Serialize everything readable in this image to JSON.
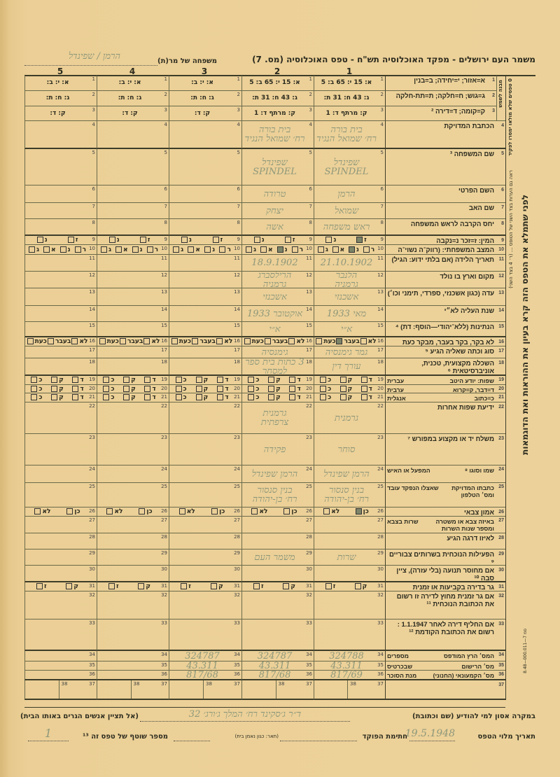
{
  "header": {
    "title": "משמר העם ירושלים - מפקד האוכלוסיה תש\"ח - טפס האוכלוסיה (מס. 7)",
    "family_label": "משפחה של מר(ת)",
    "family_value": "הרמן / שפינדל",
    "column_numbers": [
      "1",
      "2",
      "3",
      "4",
      "5"
    ]
  },
  "side": {
    "main_instruction": "לפני שתמלא את הטפס הזה קרא בעיון את ההוראות ואת הדוגמאות",
    "small_instruction": "ראה גם הערות בצד השני של הטופס ... (ר׳ 4 בצד השני)",
    "block_label": "מבנה לשמש",
    "forms_note": "0 טפסים שלא מולאו ימסרו לפקיד",
    "print_code": "סמ 7—000.011—8.48"
  },
  "rows": [
    {
      "num": "1",
      "label": "א=אזור; י=יחידה; ב=בנין"
    },
    {
      "num": "2",
      "label": "ג=גוש; ח=חלקה; ת=תת-חלקה"
    },
    {
      "num": "3",
      "label": "ק=קומה; ד=דירה ²"
    },
    {
      "num": "4",
      "label": "הכתבת המדויקת"
    },
    {
      "num": "5",
      "label": "שם המשפחה ³"
    },
    {
      "num": "6",
      "label": "השם הפרטי"
    },
    {
      "num": "7",
      "label": "שם האב"
    },
    {
      "num": "8",
      "label": "יחס הקרבה לראש המשפחה"
    },
    {
      "num": "9",
      "label": "המין: ז=זכר   נ=נקבה",
      "options": [
        "ז",
        "נ"
      ]
    },
    {
      "num": "10",
      "label": "המצב המשפחתי: (רווק־ה נשוי־ה אלמן־ה גרוש־ה)",
      "options": [
        "ר",
        "נ",
        "א",
        "ג"
      ]
    },
    {
      "num": "11",
      "label": "תאריך הלידה (אם בלתי ידוע: הגיל)"
    },
    {
      "num": "12",
      "label": "מקום וארץ בו נולד"
    },
    {
      "num": "13",
      "label": "עדה (כגון אשכנזי, ספרדי, תימני וכו׳)"
    },
    {
      "num": "14",
      "label": "שנת העליה לא״י"
    },
    {
      "num": "15",
      "label": "הנתינות (ללא־יהודי—הוסף: דת) ⁴"
    },
    {
      "num": "16",
      "label": "לא בקר, בקר בעבר, מבקר כעת",
      "options": [
        "לא",
        "בעבר",
        "כעת"
      ]
    },
    {
      "num": "17",
      "label": "סוג וכתה שאליה הגיע ⁵"
    },
    {
      "num": "18",
      "label": "השכלה מקצועית, טכנית, אוניברסיטאית ⁶"
    },
    {
      "num": "19",
      "label": "שפות: יודע היטב",
      "side": "עברית",
      "options": [
        "ד",
        "ק",
        "כ"
      ]
    },
    {
      "num": "20",
      "label": "ד=דבר, ק=קרוא",
      "side": "ערבית",
      "options": [
        "ד",
        "ק",
        "כ"
      ]
    },
    {
      "num": "21",
      "label": "כ=כתוב",
      "side": "אנגלית",
      "options": [
        "ד",
        "ק",
        "כ"
      ]
    },
    {
      "num": "22",
      "label": "ידיעת שפות אחרות"
    },
    {
      "num": "23",
      "label": "משלח יד או מקצוע במפורש ⁷"
    },
    {
      "num": "24",
      "label": "שמו וסוגו ⁸",
      "side": "המפעל או האיש"
    },
    {
      "num": "25",
      "label": "כתבתו המדויקת ומס׳ הטלפון",
      "side": "שאצלו הנפקד עובד"
    },
    {
      "num": "26",
      "label": "אמון צבאי",
      "options": [
        "כן",
        "לא"
      ]
    },
    {
      "num": "27",
      "label": "באיזה צבא או משטרה ומספר שנות השרות",
      "side": "שרות בצבא"
    },
    {
      "num": "28",
      "label": "לאיזו דרגה הגיע"
    },
    {
      "num": "29",
      "label": "הפעילות הנוכחית בשרותים צבוריים ⁹"
    },
    {
      "num": "30",
      "label": "אם מחוסר תנועה (בלי עזרה), ציין סבה ¹⁰"
    },
    {
      "num": "31",
      "label": "גר בדירה בקביעות או זמנית",
      "options": [
        "ק",
        "ז"
      ]
    },
    {
      "num": "32",
      "label": "אם גר זמנית מחוץ לדירה זו רשום את הכתובת הנוכחית ¹¹"
    },
    {
      "num": "33",
      "label": "אם החליף דירה לאחר 1.1.1947 : רשום את הכתובת הקודמת ¹²"
    },
    {
      "num": "34",
      "label": "המס׳ הרץ המודפס",
      "side": "מספרים"
    },
    {
      "num": "35",
      "label": "מס׳ הרישום",
      "side": "שבכרטיס"
    },
    {
      "num": "36",
      "label": "מס׳ הקמעונאי (החנוני)",
      "side": "מנת הסוכר"
    },
    {
      "num": "37",
      "label": "",
      "extra_num": "38"
    }
  ],
  "persons": [
    {
      "column": "1",
      "fields": {
        "1": "א: 15  י: 65  ב: 5",
        "2": "ג: 43  ח: 31  ת:",
        "3": "ק: מרתף  ד: 1",
        "4": "בית בורה / רח׳ שמואל הנגיד",
        "5": "שפינדל / SPINDEL",
        "6": "הרמן",
        "7": "שמואל",
        "8": "ראש משפחה",
        "11": "21.10.1902",
        "12": "הלנבר / גרמניה",
        "13": "אשכנזי",
        "14": "מאי 1933",
        "15": "א״י",
        "17": "גמר גימנסיה",
        "18": "עורך דין",
        "22": "גרמנית",
        "23": "סוחר",
        "24": "הרמן שפינדל",
        "25": "בנין סנסור / רח׳ בן-יהודה",
        "29": "שרות",
        "34": "324788",
        "35": "43.311",
        "36": "817/69"
      },
      "checked": {
        "9": "ז",
        "10": "נ",
        "16": "בעבר",
        "26": "כן"
      }
    },
    {
      "column": "2",
      "fields": {
        "1": "א: 15  י: 65  ב: 5",
        "2": "ג: 43  ח: 31  ת:",
        "3": "ק: מרתף  ד: 1",
        "4": "בית בורה / רח׳ שמואל הנגיד",
        "5": "שפינדל / SPINDEL",
        "6": "טרודה",
        "7": "יצחק",
        "8": "אשה",
        "11": "18.9.1902",
        "12": "הרילסברג / גרמניה",
        "13": "אשכנזי",
        "14": "אוקטובר 1933",
        "15": "א״י",
        "17": "גימנסיה",
        "18": "3 כתות בית ספר למסחר",
        "22": "גרמנית / צרפתית",
        "23": "פקידה",
        "24": "הרמן שפינדל",
        "25": "בנין סנסור / רח׳ בן-יהודה",
        "29": "משמר העם",
        "34": "324787",
        "35": "43.311",
        "36": "817/68"
      },
      "checked": {
        "10": "נ"
      }
    },
    {
      "column": "3",
      "fields": {
        "1": "א:  י:  ב:",
        "2": "ג:  ח:  ת:",
        "3": "ק:  ד:",
        "34": "324787",
        "35": "43.311",
        "36": "817/68"
      },
      "checked": {}
    },
    {
      "column": "4",
      "fields": {
        "1": "א:  י:  ב:",
        "2": "ג:  ח:  ת:",
        "3": "ק:  ד:"
      },
      "checked": {}
    },
    {
      "column": "5",
      "fields": {
        "1": "א:  י:  ב:",
        "2": "ג:  ח:  ת:",
        "3": "ק:  ד:"
      },
      "checked": {}
    }
  ],
  "footer": {
    "emergency_label": "במקרה אסון למי להודיע (שם וכתובת)",
    "emergency_value": "ד״ר ג׳סקינד רח׳ המלך ג׳ורג׳ 32",
    "emergency_note": "(אל תציין אנשים הגרים באותו הבית)",
    "date_label": "תאריך מלוי הטפס",
    "date_value": "19.5.1948",
    "signature_label": "חתימת הפוקד",
    "title_label": "(תאר: כגון נאמן בית)",
    "sheet_label": "מספר שוטף של טפס זה ¹³",
    "sheet_value": "1"
  }
}
